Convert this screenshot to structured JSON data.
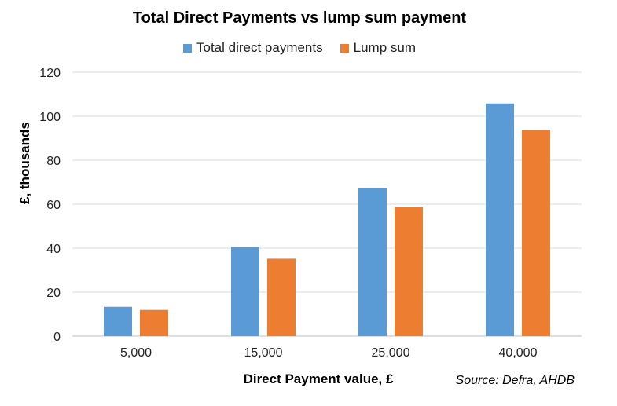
{
  "chart_data": {
    "type": "bar",
    "title": "Total Direct Payments vs lump sum payment",
    "xlabel": "Direct Payment value, £",
    "ylabel": "£, thousands",
    "categories": [
      "5,000",
      "15,000",
      "25,000",
      "40,000"
    ],
    "series": [
      {
        "name": "Total direct payments",
        "color": "#5B9BD5",
        "values": [
          13.3,
          40.5,
          67.3,
          105.8
        ]
      },
      {
        "name": "Lump sum",
        "color": "#ED7D31",
        "values": [
          11.9,
          35.2,
          58.8,
          93.9
        ]
      }
    ],
    "ylim": [
      0,
      120
    ],
    "yticks": [
      "0",
      "20",
      "40",
      "60",
      "80",
      "100",
      "120"
    ],
    "grid": true,
    "legend_position": "top",
    "source": "Source: Defra, AHDB"
  }
}
